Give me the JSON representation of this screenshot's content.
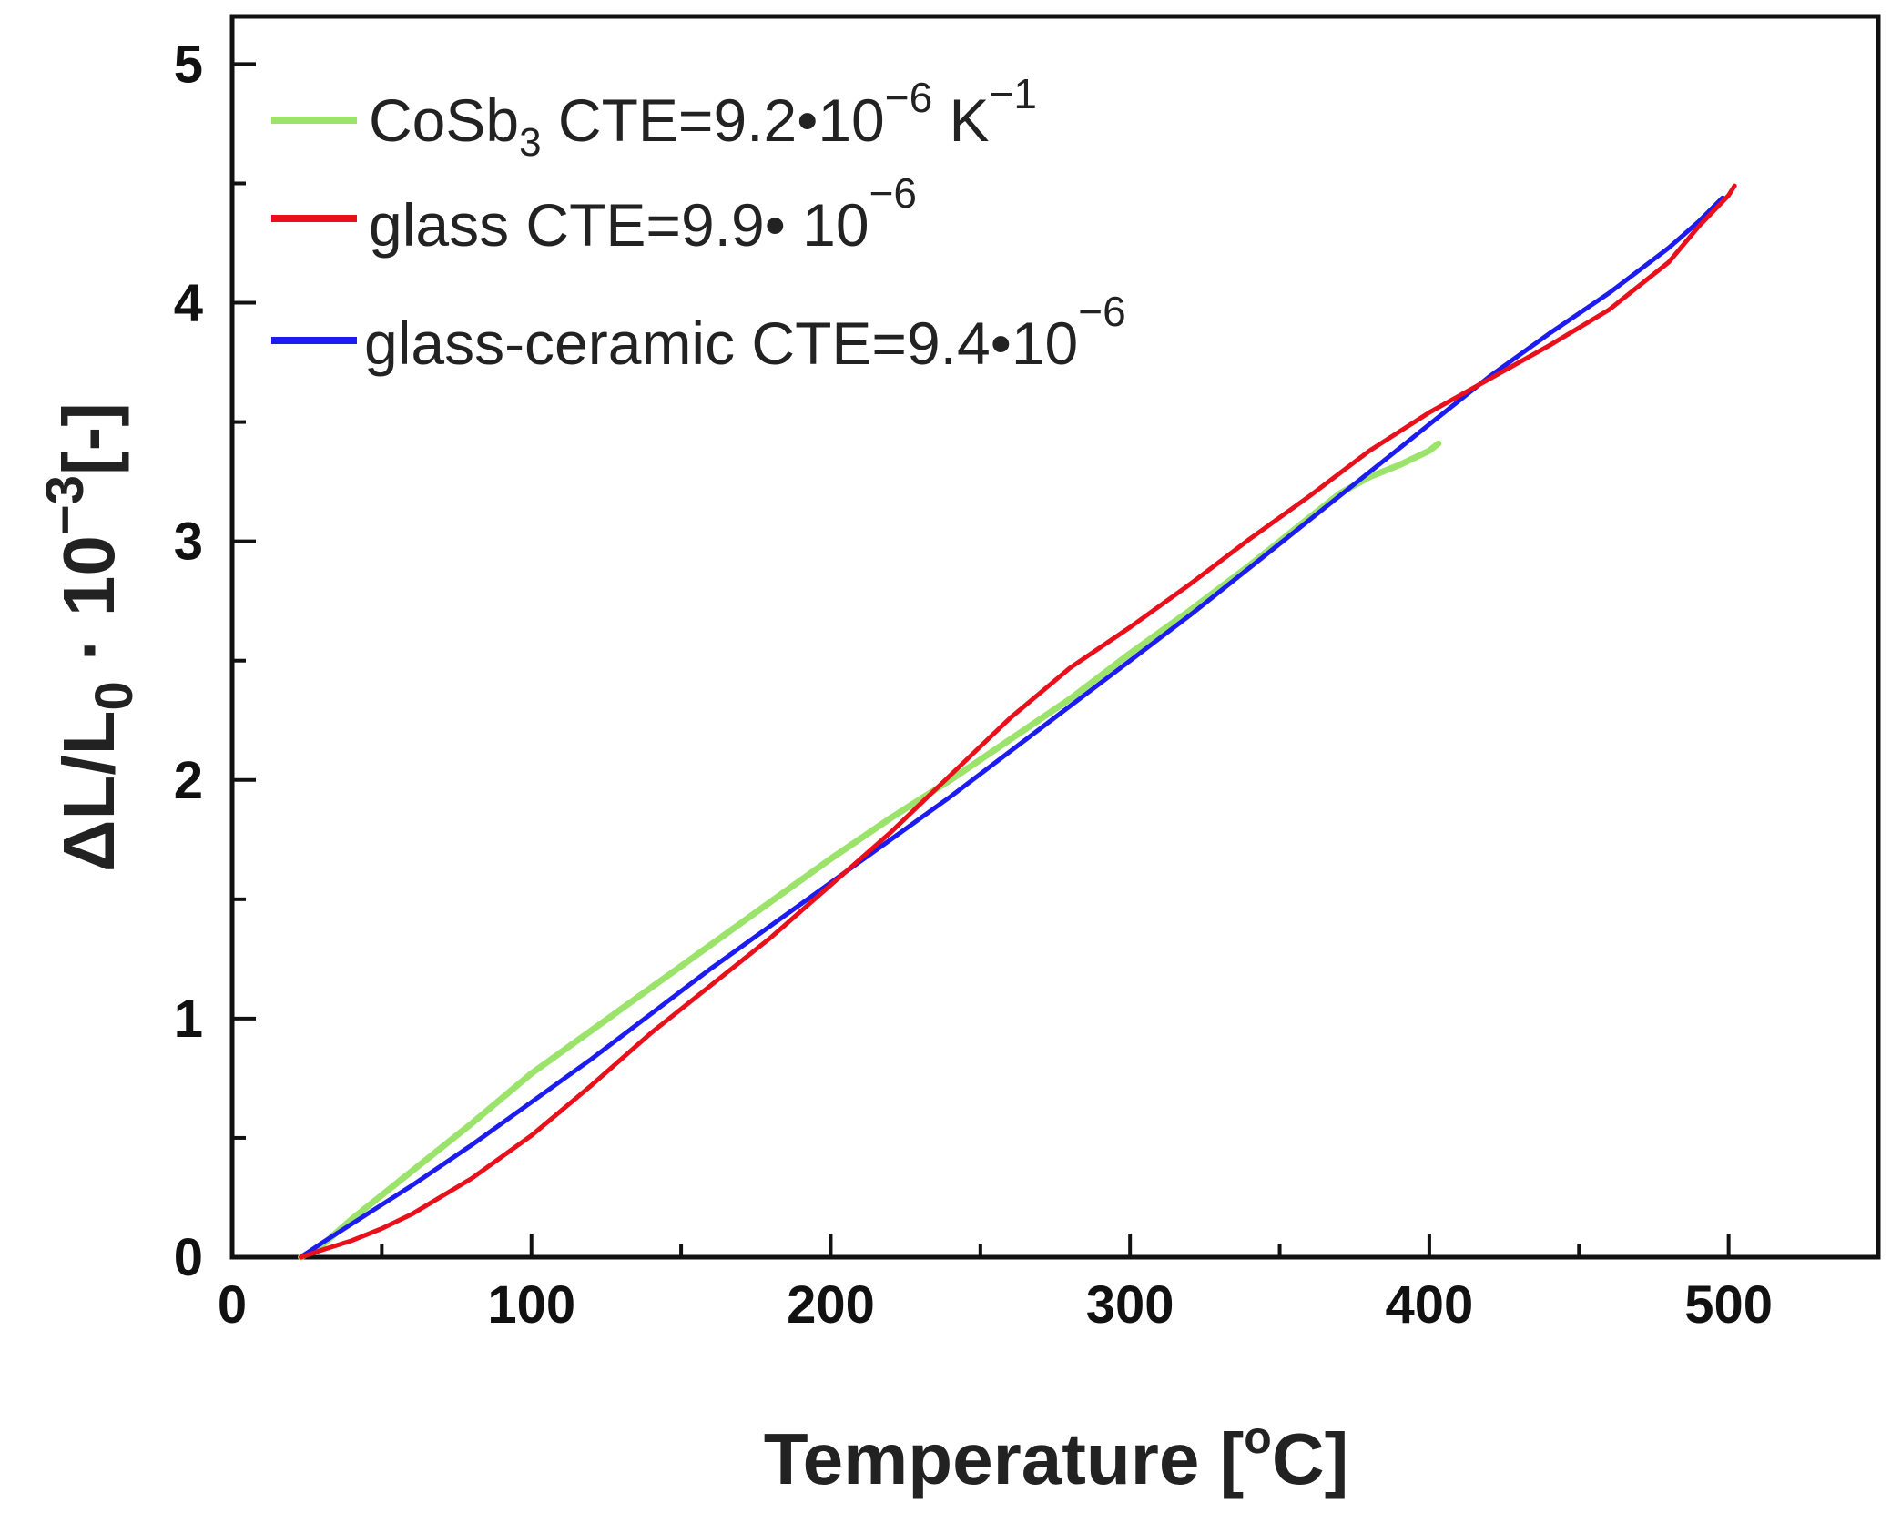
{
  "chart_data": {
    "type": "line",
    "title": "",
    "xlabel": "Temperature [°C]",
    "xlabel_main": "Temperature [",
    "xlabel_unit": "o",
    "xlabel_unit_tail": "C]",
    "ylabel": "ΔL/L0 · 10^-3 [-]",
    "ylabel_parts": {
      "a": "ΔL/L",
      "sub": "0",
      "b": " · 10",
      "sup": "−3",
      "c": "[-]"
    },
    "xlim": [
      0,
      550
    ],
    "ylim": [
      0,
      5.2
    ],
    "x_ticks": [
      0,
      100,
      200,
      300,
      400,
      500
    ],
    "x_tick_labels": [
      "0",
      "100",
      "200",
      "300",
      "400",
      "500"
    ],
    "y_ticks": [
      0,
      1,
      2,
      3,
      4,
      5
    ],
    "y_tick_labels": [
      "0",
      "1",
      "2",
      "3",
      "4",
      "5"
    ],
    "grid": false,
    "legend_position": "top-left",
    "series": [
      {
        "name": "CoSb3 CTE=9.2•10−6 K−1",
        "label_parts": {
          "a": "CoSb",
          "sub": "3",
          "b": " CTE=9.2•10",
          "sup1": "−6",
          "c": " K",
          "sup2": "−1"
        },
        "color": "#9be36a",
        "x": [
          23,
          30,
          40,
          50,
          60,
          80,
          100,
          120,
          140,
          160,
          180,
          200,
          220,
          240,
          260,
          280,
          300,
          320,
          340,
          360,
          370,
          380,
          390,
          400,
          403
        ],
        "y": [
          0.0,
          0.05,
          0.16,
          0.26,
          0.36,
          0.56,
          0.77,
          0.95,
          1.13,
          1.31,
          1.49,
          1.67,
          1.84,
          2.0,
          2.17,
          2.34,
          2.53,
          2.71,
          2.9,
          3.1,
          3.2,
          3.27,
          3.32,
          3.38,
          3.41
        ]
      },
      {
        "name": "glass CTE=9.9• 10−6",
        "label_parts": {
          "a": "glass CTE=9.9• 10",
          "sup1": "−6"
        },
        "color": "#e8101a",
        "x": [
          23,
          30,
          40,
          50,
          60,
          80,
          100,
          120,
          140,
          160,
          180,
          200,
          220,
          240,
          260,
          280,
          300,
          320,
          340,
          360,
          380,
          400,
          420,
          440,
          460,
          480,
          490,
          500,
          502
        ],
        "y": [
          0.0,
          0.03,
          0.07,
          0.12,
          0.18,
          0.33,
          0.51,
          0.72,
          0.94,
          1.14,
          1.34,
          1.56,
          1.78,
          2.02,
          2.26,
          2.47,
          2.64,
          2.82,
          3.01,
          3.19,
          3.38,
          3.54,
          3.68,
          3.82,
          3.97,
          4.17,
          4.32,
          4.45,
          4.49
        ]
      },
      {
        "name": "glass-ceramic CTE=9.4•10−6",
        "label_parts": {
          "a": "glass-ceramic CTE=9.4•10",
          "sup1": "−6"
        },
        "color": "#1c1cf0",
        "x": [
          23,
          30,
          40,
          50,
          60,
          80,
          100,
          120,
          140,
          160,
          180,
          200,
          220,
          240,
          260,
          280,
          300,
          320,
          340,
          360,
          380,
          400,
          420,
          440,
          460,
          480,
          490,
          498
        ],
        "y": [
          0.0,
          0.06,
          0.14,
          0.22,
          0.3,
          0.47,
          0.65,
          0.83,
          1.02,
          1.21,
          1.39,
          1.57,
          1.75,
          1.93,
          2.12,
          2.31,
          2.5,
          2.69,
          2.89,
          3.09,
          3.29,
          3.49,
          3.69,
          3.87,
          4.04,
          4.23,
          4.34,
          4.44
        ]
      }
    ]
  }
}
